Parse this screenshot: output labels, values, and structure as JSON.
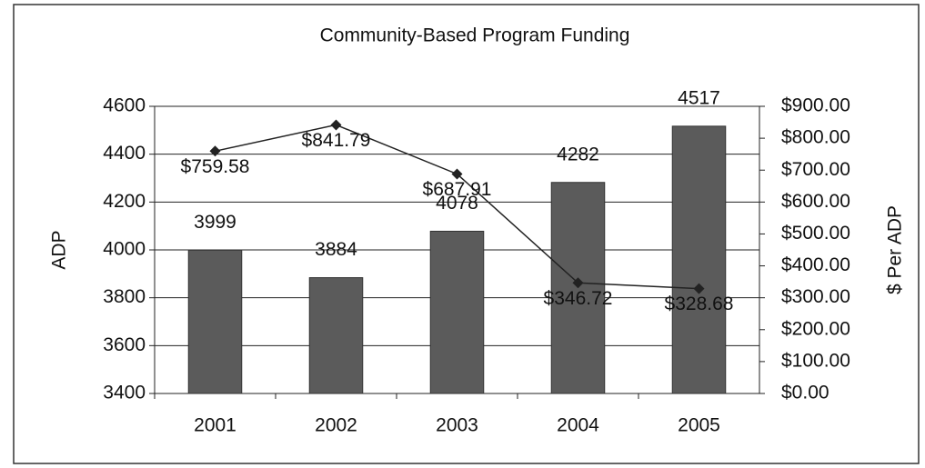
{
  "chart_data": {
    "type": "combo",
    "title": "Community-Based Program Funding",
    "y_label": "ADP",
    "y2_label": "$ Per ADP",
    "categories": [
      "2001",
      "2002",
      "2003",
      "2004",
      "2005"
    ],
    "series": [
      {
        "type": "bar",
        "color": "#5b5b5b",
        "values": [
          3999,
          3884,
          4078,
          4282,
          4517
        ]
      },
      {
        "type": "line",
        "axis": "y2",
        "color": "#222222",
        "values": [
          759.58,
          841.79,
          687.91,
          346.72,
          328.68
        ],
        "value_labels": [
          "$759.58",
          "$841.79",
          "$687.91",
          "$346.72",
          "$328.68"
        ]
      }
    ],
    "ylim": [
      3400,
      4600
    ],
    "yticks": [
      3400,
      3600,
      3800,
      4000,
      4200,
      4400,
      4600
    ],
    "y2lim": [
      0,
      900
    ],
    "y2ticks": [
      {
        "value": 0,
        "label": "$0.00"
      },
      {
        "value": 100,
        "label": "$100.00"
      },
      {
        "value": 200,
        "label": "$200.00"
      },
      {
        "value": 300,
        "label": "$300.00"
      },
      {
        "value": 400,
        "label": "$400.00"
      },
      {
        "value": 500,
        "label": "$500.00"
      },
      {
        "value": 600,
        "label": "$600.00"
      },
      {
        "value": 700,
        "label": "$700.00"
      },
      {
        "value": 800,
        "label": "$800.00"
      },
      {
        "value": 900,
        "label": "$900.00"
      }
    ],
    "grid": true
  }
}
